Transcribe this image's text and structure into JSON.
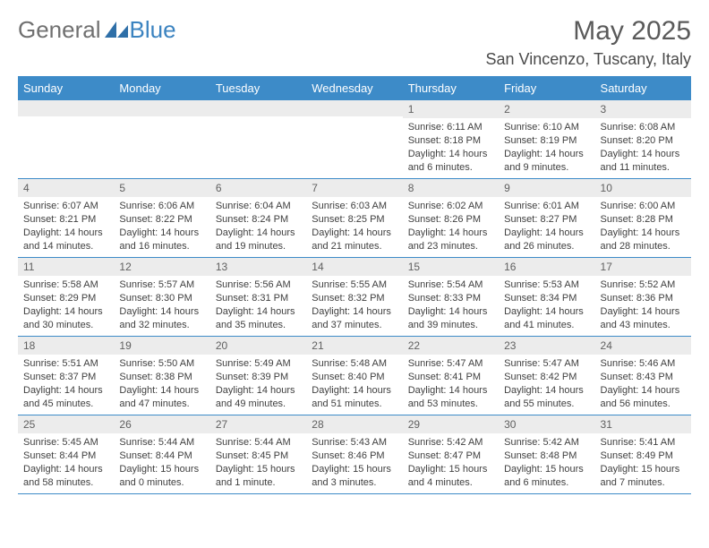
{
  "brand": {
    "part1": "General",
    "part2": "Blue"
  },
  "title": "May 2025",
  "location": "San Vincenzo, Tuscany, Italy",
  "colors": {
    "header_bg": "#3d8bc8",
    "header_fg": "#ffffff",
    "daynum_bg": "#ececec",
    "rule": "#3d8bc8"
  },
  "weekdays": [
    "Sunday",
    "Monday",
    "Tuesday",
    "Wednesday",
    "Thursday",
    "Friday",
    "Saturday"
  ],
  "cells": [
    [
      {
        "day": "",
        "sunrise": "",
        "sunset": "",
        "daylight": ""
      },
      {
        "day": "",
        "sunrise": "",
        "sunset": "",
        "daylight": ""
      },
      {
        "day": "",
        "sunrise": "",
        "sunset": "",
        "daylight": ""
      },
      {
        "day": "",
        "sunrise": "",
        "sunset": "",
        "daylight": ""
      },
      {
        "day": "1",
        "sunrise": "Sunrise: 6:11 AM",
        "sunset": "Sunset: 8:18 PM",
        "daylight": "Daylight: 14 hours and 6 minutes."
      },
      {
        "day": "2",
        "sunrise": "Sunrise: 6:10 AM",
        "sunset": "Sunset: 8:19 PM",
        "daylight": "Daylight: 14 hours and 9 minutes."
      },
      {
        "day": "3",
        "sunrise": "Sunrise: 6:08 AM",
        "sunset": "Sunset: 8:20 PM",
        "daylight": "Daylight: 14 hours and 11 minutes."
      }
    ],
    [
      {
        "day": "4",
        "sunrise": "Sunrise: 6:07 AM",
        "sunset": "Sunset: 8:21 PM",
        "daylight": "Daylight: 14 hours and 14 minutes."
      },
      {
        "day": "5",
        "sunrise": "Sunrise: 6:06 AM",
        "sunset": "Sunset: 8:22 PM",
        "daylight": "Daylight: 14 hours and 16 minutes."
      },
      {
        "day": "6",
        "sunrise": "Sunrise: 6:04 AM",
        "sunset": "Sunset: 8:24 PM",
        "daylight": "Daylight: 14 hours and 19 minutes."
      },
      {
        "day": "7",
        "sunrise": "Sunrise: 6:03 AM",
        "sunset": "Sunset: 8:25 PM",
        "daylight": "Daylight: 14 hours and 21 minutes."
      },
      {
        "day": "8",
        "sunrise": "Sunrise: 6:02 AM",
        "sunset": "Sunset: 8:26 PM",
        "daylight": "Daylight: 14 hours and 23 minutes."
      },
      {
        "day": "9",
        "sunrise": "Sunrise: 6:01 AM",
        "sunset": "Sunset: 8:27 PM",
        "daylight": "Daylight: 14 hours and 26 minutes."
      },
      {
        "day": "10",
        "sunrise": "Sunrise: 6:00 AM",
        "sunset": "Sunset: 8:28 PM",
        "daylight": "Daylight: 14 hours and 28 minutes."
      }
    ],
    [
      {
        "day": "11",
        "sunrise": "Sunrise: 5:58 AM",
        "sunset": "Sunset: 8:29 PM",
        "daylight": "Daylight: 14 hours and 30 minutes."
      },
      {
        "day": "12",
        "sunrise": "Sunrise: 5:57 AM",
        "sunset": "Sunset: 8:30 PM",
        "daylight": "Daylight: 14 hours and 32 minutes."
      },
      {
        "day": "13",
        "sunrise": "Sunrise: 5:56 AM",
        "sunset": "Sunset: 8:31 PM",
        "daylight": "Daylight: 14 hours and 35 minutes."
      },
      {
        "day": "14",
        "sunrise": "Sunrise: 5:55 AM",
        "sunset": "Sunset: 8:32 PM",
        "daylight": "Daylight: 14 hours and 37 minutes."
      },
      {
        "day": "15",
        "sunrise": "Sunrise: 5:54 AM",
        "sunset": "Sunset: 8:33 PM",
        "daylight": "Daylight: 14 hours and 39 minutes."
      },
      {
        "day": "16",
        "sunrise": "Sunrise: 5:53 AM",
        "sunset": "Sunset: 8:34 PM",
        "daylight": "Daylight: 14 hours and 41 minutes."
      },
      {
        "day": "17",
        "sunrise": "Sunrise: 5:52 AM",
        "sunset": "Sunset: 8:36 PM",
        "daylight": "Daylight: 14 hours and 43 minutes."
      }
    ],
    [
      {
        "day": "18",
        "sunrise": "Sunrise: 5:51 AM",
        "sunset": "Sunset: 8:37 PM",
        "daylight": "Daylight: 14 hours and 45 minutes."
      },
      {
        "day": "19",
        "sunrise": "Sunrise: 5:50 AM",
        "sunset": "Sunset: 8:38 PM",
        "daylight": "Daylight: 14 hours and 47 minutes."
      },
      {
        "day": "20",
        "sunrise": "Sunrise: 5:49 AM",
        "sunset": "Sunset: 8:39 PM",
        "daylight": "Daylight: 14 hours and 49 minutes."
      },
      {
        "day": "21",
        "sunrise": "Sunrise: 5:48 AM",
        "sunset": "Sunset: 8:40 PM",
        "daylight": "Daylight: 14 hours and 51 minutes."
      },
      {
        "day": "22",
        "sunrise": "Sunrise: 5:47 AM",
        "sunset": "Sunset: 8:41 PM",
        "daylight": "Daylight: 14 hours and 53 minutes."
      },
      {
        "day": "23",
        "sunrise": "Sunrise: 5:47 AM",
        "sunset": "Sunset: 8:42 PM",
        "daylight": "Daylight: 14 hours and 55 minutes."
      },
      {
        "day": "24",
        "sunrise": "Sunrise: 5:46 AM",
        "sunset": "Sunset: 8:43 PM",
        "daylight": "Daylight: 14 hours and 56 minutes."
      }
    ],
    [
      {
        "day": "25",
        "sunrise": "Sunrise: 5:45 AM",
        "sunset": "Sunset: 8:44 PM",
        "daylight": "Daylight: 14 hours and 58 minutes."
      },
      {
        "day": "26",
        "sunrise": "Sunrise: 5:44 AM",
        "sunset": "Sunset: 8:44 PM",
        "daylight": "Daylight: 15 hours and 0 minutes."
      },
      {
        "day": "27",
        "sunrise": "Sunrise: 5:44 AM",
        "sunset": "Sunset: 8:45 PM",
        "daylight": "Daylight: 15 hours and 1 minute."
      },
      {
        "day": "28",
        "sunrise": "Sunrise: 5:43 AM",
        "sunset": "Sunset: 8:46 PM",
        "daylight": "Daylight: 15 hours and 3 minutes."
      },
      {
        "day": "29",
        "sunrise": "Sunrise: 5:42 AM",
        "sunset": "Sunset: 8:47 PM",
        "daylight": "Daylight: 15 hours and 4 minutes."
      },
      {
        "day": "30",
        "sunrise": "Sunrise: 5:42 AM",
        "sunset": "Sunset: 8:48 PM",
        "daylight": "Daylight: 15 hours and 6 minutes."
      },
      {
        "day": "31",
        "sunrise": "Sunrise: 5:41 AM",
        "sunset": "Sunset: 8:49 PM",
        "daylight": "Daylight: 15 hours and 7 minutes."
      }
    ]
  ]
}
